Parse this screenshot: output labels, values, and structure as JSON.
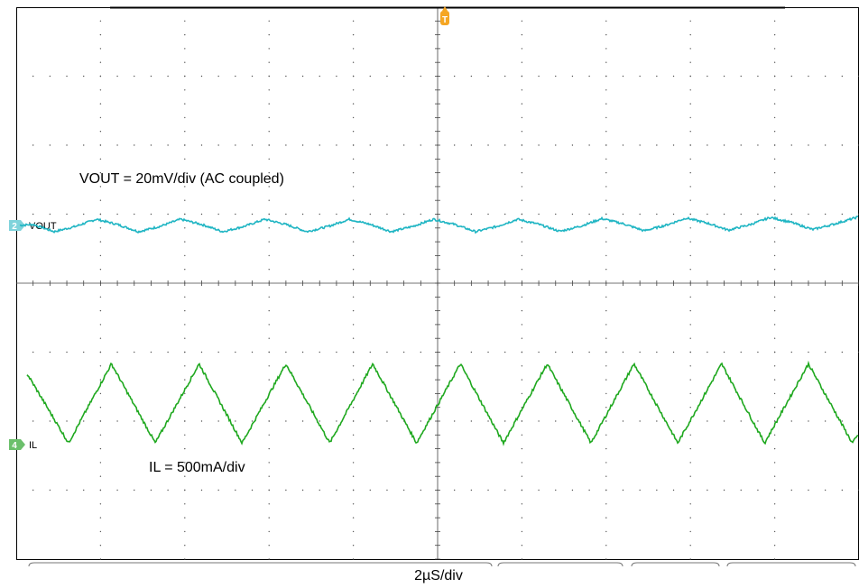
{
  "chart_data": {
    "type": "line",
    "title": "",
    "grid": true,
    "x_divisions": 10,
    "y_divisions": 8,
    "timebase": "2µS/div",
    "trigger_marker": "T",
    "annotations": {
      "vout": "VOUT = 20mV/div (AC coupled)",
      "il": "IL = 500mA/div"
    },
    "series": [
      {
        "name": "VOUT",
        "channel": "2",
        "color": "#1FB5C3",
        "coupling": "AC",
        "scale_per_div": "20mV",
        "waveform": "ripple",
        "x_div": [
          0.0,
          0.2,
          0.45,
          0.7,
          0.95,
          1.2,
          1.45,
          1.7,
          1.95,
          2.2,
          2.45,
          2.7,
          2.95,
          3.2,
          3.45,
          3.7,
          3.95,
          4.2,
          4.45,
          4.7,
          4.95,
          5.2,
          5.45,
          5.7,
          5.95,
          6.2,
          6.45,
          6.7,
          6.95,
          7.2,
          7.45,
          7.7,
          7.95,
          8.2,
          8.45,
          8.7,
          8.95,
          9.2,
          9.45,
          9.7,
          10.0
        ],
        "y_div": [
          0.0,
          0.05,
          -0.3,
          -0.05,
          0.3,
          0.05,
          -0.3,
          -0.05,
          0.3,
          0.05,
          -0.3,
          -0.05,
          0.3,
          0.05,
          -0.3,
          -0.05,
          0.3,
          0.05,
          -0.3,
          -0.05,
          0.3,
          0.05,
          -0.3,
          -0.05,
          0.3,
          0.05,
          -0.3,
          -0.05,
          0.3,
          0.05,
          -0.3,
          -0.05,
          0.3,
          0.05,
          -0.3,
          -0.05,
          0.3,
          0.05,
          -0.3,
          -0.05,
          0.3
        ]
      },
      {
        "name": "IL",
        "channel": "4",
        "color": "#1FA81F",
        "scale_per_div": "500mA",
        "waveform": "triangle",
        "x_div": [
          0.0,
          0.1,
          0.62,
          1.13,
          1.65,
          2.17,
          2.68,
          3.2,
          3.72,
          4.23,
          4.75,
          5.27,
          5.78,
          6.3,
          6.82,
          7.33,
          7.85,
          8.37,
          8.88,
          9.4,
          9.92,
          10.0
        ],
        "y_div": [
          1.3,
          1.4,
          0.15,
          1.5,
          0.15,
          1.5,
          0.15,
          1.5,
          0.15,
          1.5,
          0.15,
          1.5,
          0.15,
          1.5,
          0.15,
          1.5,
          0.15,
          1.5,
          0.15,
          1.5,
          0.15,
          0.3
        ]
      }
    ]
  }
}
